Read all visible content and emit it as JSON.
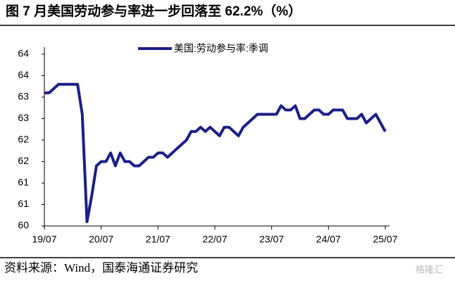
{
  "chart_data": {
    "type": "line",
    "title": "图   7 月美国劳动参与率进一步回落至 62.2%（%）",
    "source": "资料来源：Wind，国泰海通证券研究",
    "watermark": "格隆汇",
    "categories": [
      "19/07",
      null,
      null,
      null,
      null,
      null,
      null,
      null,
      null,
      null,
      null,
      null,
      "20/07",
      null,
      null,
      null,
      null,
      null,
      null,
      null,
      null,
      null,
      null,
      null,
      "21/07",
      null,
      null,
      null,
      null,
      null,
      null,
      null,
      null,
      null,
      null,
      null,
      "22/07",
      null,
      null,
      null,
      null,
      null,
      null,
      null,
      null,
      null,
      null,
      null,
      "23/07",
      null,
      null,
      null,
      null,
      null,
      null,
      null,
      null,
      null,
      null,
      null,
      "24/07",
      null,
      null,
      null,
      null,
      null,
      null,
      null,
      null,
      null,
      null,
      null,
      "25/07"
    ],
    "series": [
      {
        "name": "美国:劳动参与率:季调",
        "color": "#1c1f87",
        "values": [
          63.1,
          63.1,
          63.2,
          63.3,
          63.3,
          63.3,
          63.3,
          63.3,
          62.6,
          60.1,
          60.7,
          61.4,
          61.5,
          61.5,
          61.7,
          61.4,
          61.7,
          61.5,
          61.5,
          61.4,
          61.4,
          61.5,
          61.6,
          61.6,
          61.7,
          61.7,
          61.6,
          61.7,
          61.8,
          61.9,
          62.0,
          62.2,
          62.2,
          62.3,
          62.2,
          62.3,
          62.2,
          62.1,
          62.3,
          62.3,
          62.2,
          62.1,
          62.3,
          62.4,
          62.5,
          62.6,
          62.6,
          62.6,
          62.6,
          62.6,
          62.8,
          62.7,
          62.7,
          62.8,
          62.5,
          62.5,
          62.6,
          62.7,
          62.7,
          62.6,
          62.6,
          62.7,
          62.7,
          62.7,
          62.5,
          62.5,
          62.5,
          62.6,
          62.4,
          62.5,
          62.6,
          62.4,
          62.2
        ]
      }
    ],
    "ylim": [
      60,
      64
    ],
    "yticks": [
      60,
      {
        "value": 60.5,
        "label": "61"
      },
      61,
      {
        "value": 61.5,
        "label": "62"
      },
      62,
      {
        "value": 62.5,
        "label": "63"
      },
      63,
      {
        "value": 63.5,
        "label": "64"
      },
      64
    ],
    "legend": "top"
  }
}
